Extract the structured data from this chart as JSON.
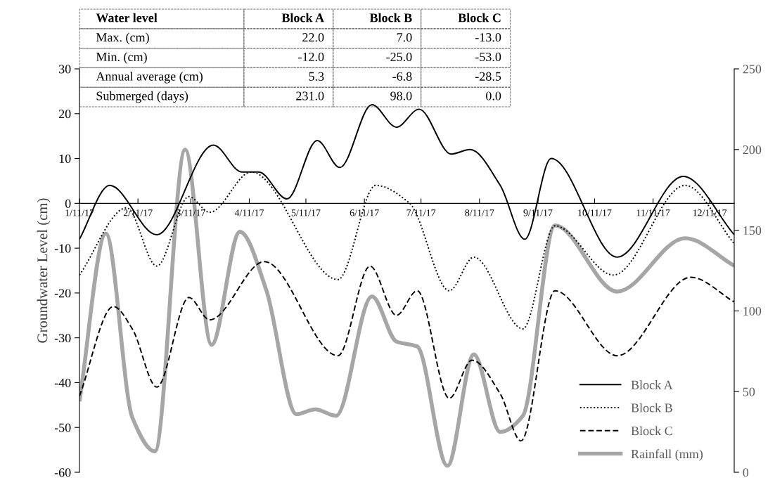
{
  "chart_data": {
    "type": "line",
    "ylabel": "Groundwater Level (cm)",
    "xlim": [
      "2017-01-11",
      "2017-12-24"
    ],
    "xticks": [
      {
        "value": "2017-01-11",
        "label": "1/11/17"
      },
      {
        "value": "2017-02-11",
        "label": "2/11/17"
      },
      {
        "value": "2017-03-11",
        "label": "3/11/17"
      },
      {
        "value": "2017-04-11",
        "label": "4/11/17"
      },
      {
        "value": "2017-05-11",
        "label": "5/11/17"
      },
      {
        "value": "2017-06-11",
        "label": "6/11/17"
      },
      {
        "value": "2017-07-11",
        "label": "7/11/17"
      },
      {
        "value": "2017-08-11",
        "label": "8/11/17"
      },
      {
        "value": "2017-09-11",
        "label": "9/11/17"
      },
      {
        "value": "2017-10-11",
        "label": "10/11/17"
      },
      {
        "value": "2017-11-11",
        "label": "11/11/17"
      },
      {
        "value": "2017-12-11",
        "label": "12/11/17"
      }
    ],
    "ylim": [
      -60,
      30
    ],
    "yticks": [
      -60,
      -50,
      -40,
      -30,
      -20,
      -10,
      0,
      10,
      20,
      30
    ],
    "y2lim": [
      0,
      250
    ],
    "y2ticks": [
      0,
      50,
      100,
      150,
      200,
      250
    ],
    "grid": false,
    "legend": "bottom right",
    "marker": "none",
    "series": [
      {
        "name": "Block A",
        "color": "#000000",
        "line_style": "solid",
        "x": [
          "2017-01-11",
          "2017-01-27",
          "2017-02-21",
          "2017-03-23",
          "2017-04-07",
          "2017-04-16",
          "2017-05-01",
          "2017-05-17",
          "2017-05-29",
          "2017-06-15",
          "2017-06-28",
          "2017-07-10",
          "2017-07-27",
          "2017-08-06",
          "2017-08-22",
          "2017-09-04",
          "2017-09-18",
          "2017-10-23",
          "2017-11-27",
          "2017-12-24"
        ],
        "values": [
          -8,
          4,
          -7,
          13,
          7,
          7,
          1,
          14,
          8,
          22,
          17,
          21,
          11,
          12,
          4,
          -8,
          10,
          -12,
          6,
          -7
        ]
      },
      {
        "name": "Block B",
        "color": "#000000",
        "line_style": "dotted",
        "x": [
          "2017-01-11",
          "2017-02-05",
          "2017-02-21",
          "2017-03-10",
          "2017-03-21",
          "2017-04-12",
          "2017-05-28",
          "2017-06-17",
          "2017-07-05",
          "2017-07-26",
          "2017-08-08",
          "2017-09-03",
          "2017-09-20",
          "2017-10-21",
          "2017-11-28",
          "2017-12-24"
        ],
        "values": [
          -16,
          -1,
          -14,
          1.5,
          -2,
          7,
          -17,
          4,
          0,
          -19.5,
          -12,
          -28,
          -5,
          -16,
          4,
          -9
        ]
      },
      {
        "name": "Block C",
        "color": "#000000",
        "line_style": "dashed",
        "x": [
          "2017-01-11",
          "2017-01-29",
          "2017-02-08",
          "2017-02-21",
          "2017-03-10",
          "2017-03-21",
          "2017-04-19",
          "2017-05-28",
          "2017-06-14",
          "2017-06-28",
          "2017-07-09",
          "2017-07-26",
          "2017-08-07",
          "2017-08-22",
          "2017-09-02",
          "2017-09-20",
          "2017-10-23",
          "2017-12-01",
          "2017-12-24"
        ],
        "values": [
          -43,
          -23,
          -28,
          -41,
          -21,
          -26,
          -13,
          -34,
          -14,
          -25,
          -19.5,
          -43.5,
          -35,
          -42.5,
          -53,
          -19.5,
          -34,
          -16.5,
          -22
        ]
      },
      {
        "name": "Rainfall (mm)",
        "color": "#a6a6a6",
        "line_style": "solid",
        "axis": "y2",
        "x": [
          "2017-01-11",
          "2017-01-25",
          "2017-02-08",
          "2017-02-20",
          "2017-03-08",
          "2017-03-22",
          "2017-04-06",
          "2017-04-20",
          "2017-05-06",
          "2017-05-16",
          "2017-05-27",
          "2017-06-15",
          "2017-06-28",
          "2017-07-09",
          "2017-07-25",
          "2017-08-08",
          "2017-08-22",
          "2017-09-03",
          "2017-09-20",
          "2017-10-23",
          "2017-11-28",
          "2017-12-24"
        ],
        "values": [
          44,
          148,
          34,
          13,
          200,
          79,
          149,
          113,
          36,
          39,
          35,
          109,
          81,
          78,
          4,
          73,
          25,
          35,
          153,
          112,
          145,
          128
        ]
      }
    ],
    "annotations": [
      "Water level",
      "Block A",
      "Block B",
      "Block C",
      "Max. (cm)",
      "22.0",
      "7.0",
      "-13.0",
      "Min. (cm)",
      "-12.0",
      "-25.0",
      "-53.0",
      "Annual average (cm)",
      "5.3",
      "-6.8",
      "-28.5",
      "Submerged (days)",
      "231.0",
      "98.0",
      "0.0"
    ]
  }
}
